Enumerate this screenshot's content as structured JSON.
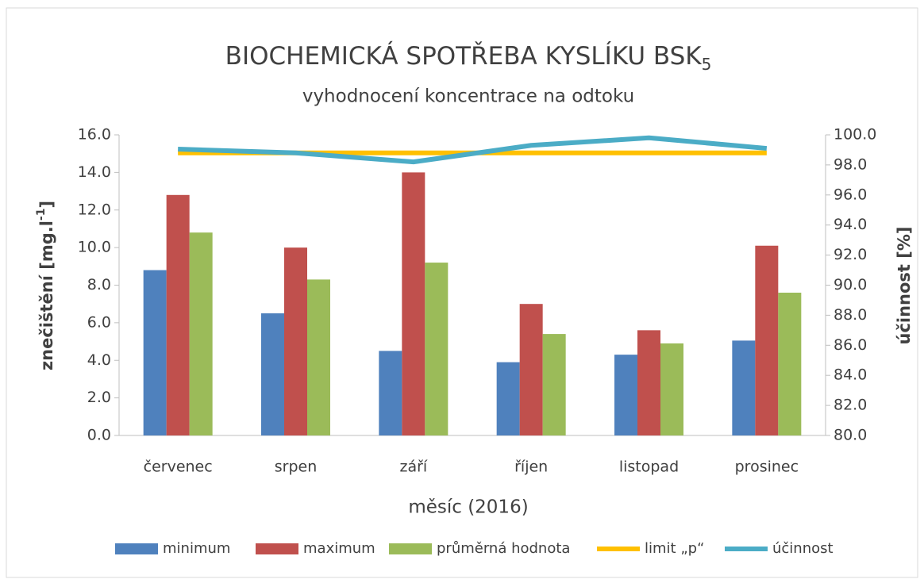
{
  "chart_data": {
    "type": "bar",
    "title": "BIOCHEMICKÁ SPOTŘEBA KYSLÍKU BSK",
    "title_subscript": "5",
    "subtitle": "vyhodnocení koncentrace na odtoku",
    "x_label": "měsíc (2016)",
    "y_label": "znečištění [mg.l",
    "y_label_superscript": "-1",
    "y_label_end": "]",
    "y2_label": "účinnost [%]",
    "categories": [
      "červenec",
      "srpen",
      "září",
      "říjen",
      "listopad",
      "prosinec"
    ],
    "series": [
      {
        "name": "minimum",
        "color": "#4f81bd",
        "type": "bar",
        "values": [
          8.8,
          6.5,
          4.5,
          3.9,
          4.3,
          5.05
        ]
      },
      {
        "name": "maximum",
        "color": "#c0504d",
        "type": "bar",
        "values": [
          12.8,
          10.0,
          14.0,
          7.0,
          5.6,
          10.1
        ]
      },
      {
        "name": "průměrná hodnota",
        "color": "#9bbb59",
        "type": "bar",
        "values": [
          10.8,
          8.3,
          9.2,
          5.4,
          4.9,
          7.6
        ]
      },
      {
        "name": "limit „p“",
        "color": "#ffc000",
        "type": "line",
        "axis": "y2",
        "values": [
          98.8,
          98.8,
          98.8,
          98.8,
          98.8,
          98.8
        ]
      },
      {
        "name": "účinnost",
        "color": "#4bacc6",
        "type": "line",
        "axis": "y2",
        "values": [
          99.05,
          98.8,
          98.2,
          99.3,
          99.8,
          99.1
        ]
      }
    ],
    "ylim": [
      0,
      16
    ],
    "yticks": [
      {
        "value": 0,
        "label": "0.0"
      },
      {
        "value": 2,
        "label": "2.0"
      },
      {
        "value": 4,
        "label": "4.0"
      },
      {
        "value": 6,
        "label": "6.0"
      },
      {
        "value": 8,
        "label": "8.0"
      },
      {
        "value": 10,
        "label": "10.0"
      },
      {
        "value": 12,
        "label": "12.0"
      },
      {
        "value": 14,
        "label": "14.0"
      },
      {
        "value": 16,
        "label": "16.0"
      }
    ],
    "y2lim": [
      80,
      100
    ],
    "y2ticks": [
      {
        "value": 80,
        "label": "80.0"
      },
      {
        "value": 82,
        "label": "82.0"
      },
      {
        "value": 84,
        "label": "84.0"
      },
      {
        "value": 86,
        "label": "86.0"
      },
      {
        "value": 88,
        "label": "88.0"
      },
      {
        "value": 90,
        "label": "90.0"
      },
      {
        "value": 92,
        "label": "92.0"
      },
      {
        "value": 94,
        "label": "94.0"
      },
      {
        "value": 96,
        "label": "96.0"
      },
      {
        "value": 98,
        "label": "98.0"
      },
      {
        "value": 100,
        "label": "100.0"
      }
    ],
    "legend": "bottom"
  }
}
